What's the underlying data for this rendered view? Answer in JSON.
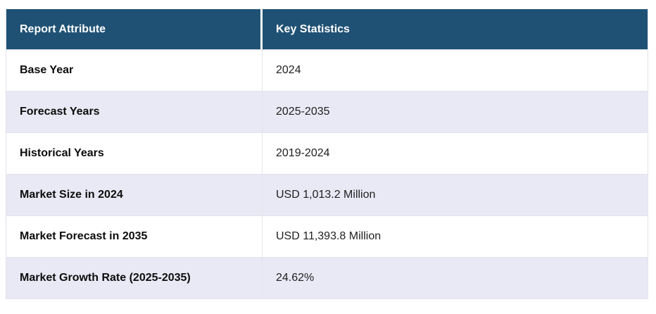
{
  "colors": {
    "header_bg": "#1f5174",
    "header_text": "#ffffff",
    "row_bg": "#ffffff",
    "row_alt_bg": "#e8e9f4",
    "border": "#e3e3ec",
    "attribute_text": "#0d0d0d",
    "value_text": "#1f1f1f"
  },
  "table": {
    "columns": [
      "Report Attribute",
      "Key Statistics"
    ],
    "rows": [
      {
        "attribute": "Base Year",
        "value": "2024"
      },
      {
        "attribute": "Forecast Years",
        "value": "2025-2035"
      },
      {
        "attribute": "Historical Years",
        "value": "2019-2024"
      },
      {
        "attribute": "Market Size in 2024",
        "value": "USD 1,013.2 Million"
      },
      {
        "attribute": "Market Forecast in 2035",
        "value": "USD 11,393.8 Million"
      },
      {
        "attribute": "Market Growth Rate (2025-2035)",
        "value": "24.62%"
      }
    ]
  },
  "chart_data": {
    "type": "table",
    "columns": [
      "Report Attribute",
      "Key Statistics"
    ],
    "rows": [
      [
        "Base Year",
        "2024"
      ],
      [
        "Forecast Years",
        "2025-2035"
      ],
      [
        "Historical Years",
        "2019-2024"
      ],
      [
        "Market Size in 2024",
        "USD 1,013.2 Million"
      ],
      [
        "Market Forecast in 2035",
        "USD 11,393.8 Million"
      ],
      [
        "Market Growth Rate (2025-2035)",
        "24.62%"
      ]
    ]
  }
}
